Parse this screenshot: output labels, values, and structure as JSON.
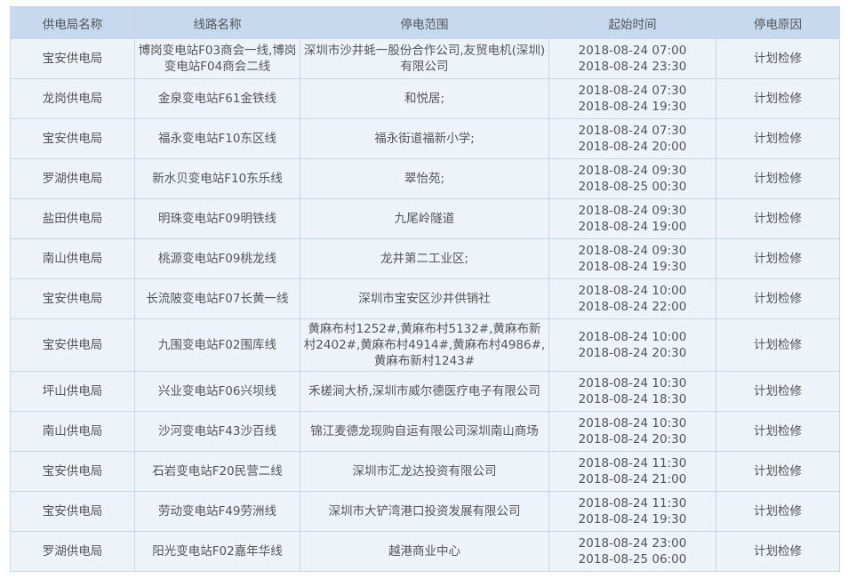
{
  "headers": [
    "供电局名称",
    "线路名称",
    "停电范围",
    "起始时间",
    "停电原因"
  ],
  "rows": [
    {
      "bureau": "宝安供电局",
      "line": "博岗变电站F03商会一线,博岗变电站F04商会二线",
      "scope": "深圳市沙井蚝一股份合作公司,友贸电机(深圳)有限公司",
      "start": "2018-08-24 07:00",
      "end": "2018-08-24 23:30",
      "reason": "计划检修"
    },
    {
      "bureau": "龙岗供电局",
      "line": "金泉变电站F61金铁线",
      "scope": "和悦居;",
      "start": "2018-08-24 07:30",
      "end": "2018-08-24 19:30",
      "reason": "计划检修"
    },
    {
      "bureau": "宝安供电局",
      "line": "福永变电站F10东区线",
      "scope": "福永街道福新小学;",
      "start": "2018-08-24 07:30",
      "end": "2018-08-24 20:00",
      "reason": "计划检修"
    },
    {
      "bureau": "罗湖供电局",
      "line": "新水贝变电站F10东乐线",
      "scope": "翠怡苑;",
      "start": "2018-08-24 09:30",
      "end": "2018-08-25 00:30",
      "reason": "计划检修"
    },
    {
      "bureau": "盐田供电局",
      "line": "明珠变电站F09明铁线",
      "scope": "九尾岭隧道",
      "start": "2018-08-24 09:30",
      "end": "2018-08-24 19:00",
      "reason": "计划检修"
    },
    {
      "bureau": "南山供电局",
      "line": "桃源变电站F09桃龙线",
      "scope": "龙井第二工业区;",
      "start": "2018-08-24 09:30",
      "end": "2018-08-24 19:30",
      "reason": "计划检修"
    },
    {
      "bureau": "宝安供电局",
      "line": "长流陂变电站F07长黄一线",
      "scope": "深圳市宝安区沙井供销社",
      "start": "2018-08-24 10:00",
      "end": "2018-08-24 22:00",
      "reason": "计划检修"
    },
    {
      "bureau": "宝安供电局",
      "line": "九围变电站F02围库线",
      "scope": "黄麻布村1252#,黄麻布村5132#,黄麻布新村2402#,黄麻布村4914#,黄麻布村4986#,黄麻布新村1243#",
      "start": "2018-08-24 10:00",
      "end": "2018-08-24 20:30",
      "reason": "计划检修"
    },
    {
      "bureau": "坪山供电局",
      "line": "兴业变电站F06兴坝线",
      "scope": "禾槎涧大桥,深圳市威尔德医疗电子有限公司",
      "start": "2018-08-24 10:30",
      "end": "2018-08-24 18:30",
      "reason": "计划检修"
    },
    {
      "bureau": "南山供电局",
      "line": "沙河变电站F43沙百线",
      "scope": "锦江麦德龙现购自运有限公司深圳南山商场",
      "start": "2018-08-24 10:30",
      "end": "2018-08-24 20:30",
      "reason": "计划检修"
    },
    {
      "bureau": "宝安供电局",
      "line": "石岩变电站F20民营二线",
      "scope": "深圳市汇龙达投资有限公司",
      "start": "2018-08-24 11:30",
      "end": "2018-08-24 21:00",
      "reason": "计划检修"
    },
    {
      "bureau": "宝安供电局",
      "line": "劳动变电站F49劳洲线",
      "scope": "深圳市大铲湾港口投资发展有限公司",
      "start": "2018-08-24 11:30",
      "end": "2018-08-24 19:30",
      "reason": "计划检修"
    },
    {
      "bureau": "罗湖供电局",
      "line": "阳光变电站F02嘉年华线",
      "scope": "越港商业中心",
      "start": "2018-08-24 23:00",
      "end": "2018-08-25 06:00",
      "reason": "计划检修"
    }
  ]
}
